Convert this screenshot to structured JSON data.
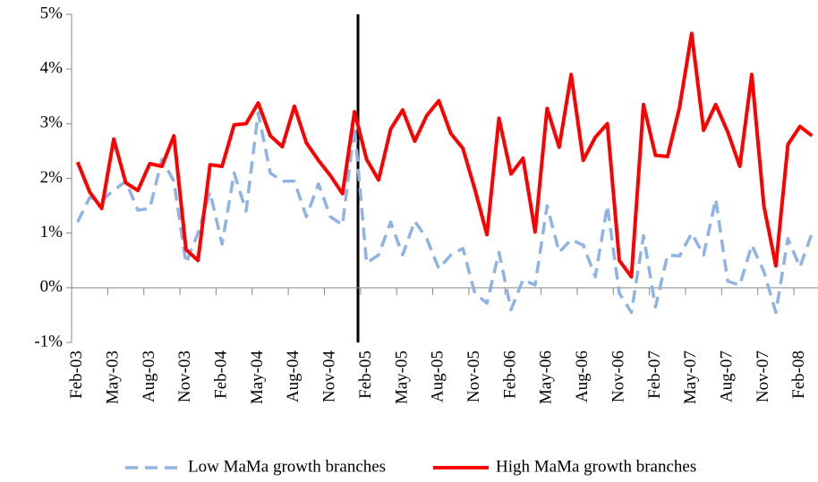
{
  "chart_data": {
    "type": "line",
    "categories": [
      "Feb-03",
      null,
      null,
      "May-03",
      null,
      null,
      "Aug-03",
      null,
      null,
      "Nov-03",
      null,
      null,
      "Feb-04",
      null,
      null,
      "May-04",
      null,
      null,
      "Aug-04",
      null,
      null,
      "Nov-04",
      null,
      null,
      "Feb-05",
      null,
      null,
      "May-05",
      null,
      null,
      "Aug-05",
      null,
      null,
      "Nov-05",
      null,
      null,
      "Feb-06",
      null,
      null,
      "May-06",
      null,
      null,
      "Aug-06",
      null,
      null,
      "Nov-06",
      null,
      null,
      "Feb-07",
      null,
      null,
      "May-07",
      null,
      null,
      "Aug-07",
      null,
      null,
      "Nov-07",
      null,
      null,
      "Feb-08",
      null
    ],
    "series": [
      {
        "name": "Low MaMa growth branches",
        "color": "#8fb3e3",
        "dash": true,
        "values": [
          1.2,
          1.65,
          1.6,
          1.78,
          1.95,
          1.42,
          1.45,
          2.35,
          1.95,
          0.45,
          1.0,
          1.75,
          0.8,
          2.1,
          1.4,
          3.2,
          2.1,
          1.95,
          1.95,
          1.3,
          1.9,
          1.3,
          1.15,
          2.95,
          0.45,
          0.6,
          1.2,
          0.6,
          1.22,
          0.9,
          0.35,
          0.6,
          0.72,
          -0.1,
          -0.28,
          0.65,
          -0.4,
          0.15,
          0.05,
          1.5,
          0.65,
          0.88,
          0.78,
          0.2,
          1.5,
          -0.1,
          -0.45,
          0.95,
          -0.35,
          0.6,
          0.58,
          1.0,
          0.6,
          1.62,
          0.12,
          0.05,
          0.78,
          0.3,
          -0.45,
          0.9,
          0.38,
          1.0
        ]
      },
      {
        "name": "High MaMa growth branches",
        "color": "#ff0000",
        "dash": false,
        "values": [
          2.3,
          1.75,
          1.45,
          2.72,
          1.92,
          1.78,
          2.27,
          2.22,
          2.78,
          0.7,
          0.5,
          2.25,
          2.22,
          2.98,
          3.0,
          3.38,
          2.78,
          2.58,
          3.32,
          2.65,
          2.33,
          2.05,
          1.72,
          3.22,
          2.35,
          1.97,
          2.9,
          3.25,
          2.68,
          3.15,
          3.42,
          2.82,
          2.55,
          1.8,
          0.97,
          3.1,
          2.08,
          2.37,
          1.02,
          3.28,
          2.57,
          3.9,
          2.33,
          2.75,
          3.0,
          0.5,
          0.2,
          3.35,
          2.42,
          2.4,
          3.3,
          4.65,
          2.88,
          3.35,
          2.85,
          2.22,
          3.9,
          1.5,
          0.4,
          2.62,
          2.95,
          2.78
        ]
      }
    ],
    "ylim": [
      -1,
      5
    ],
    "yticks": [
      {
        "value": -1,
        "label": "-1%"
      },
      {
        "value": 0,
        "label": "0%"
      },
      {
        "value": 1,
        "label": "1%"
      },
      {
        "value": 2,
        "label": "2%"
      },
      {
        "value": 3,
        "label": "3%"
      },
      {
        "value": 4,
        "label": "4%"
      },
      {
        "value": 5,
        "label": "5%"
      }
    ],
    "grid": false,
    "legend": "bottom"
  }
}
